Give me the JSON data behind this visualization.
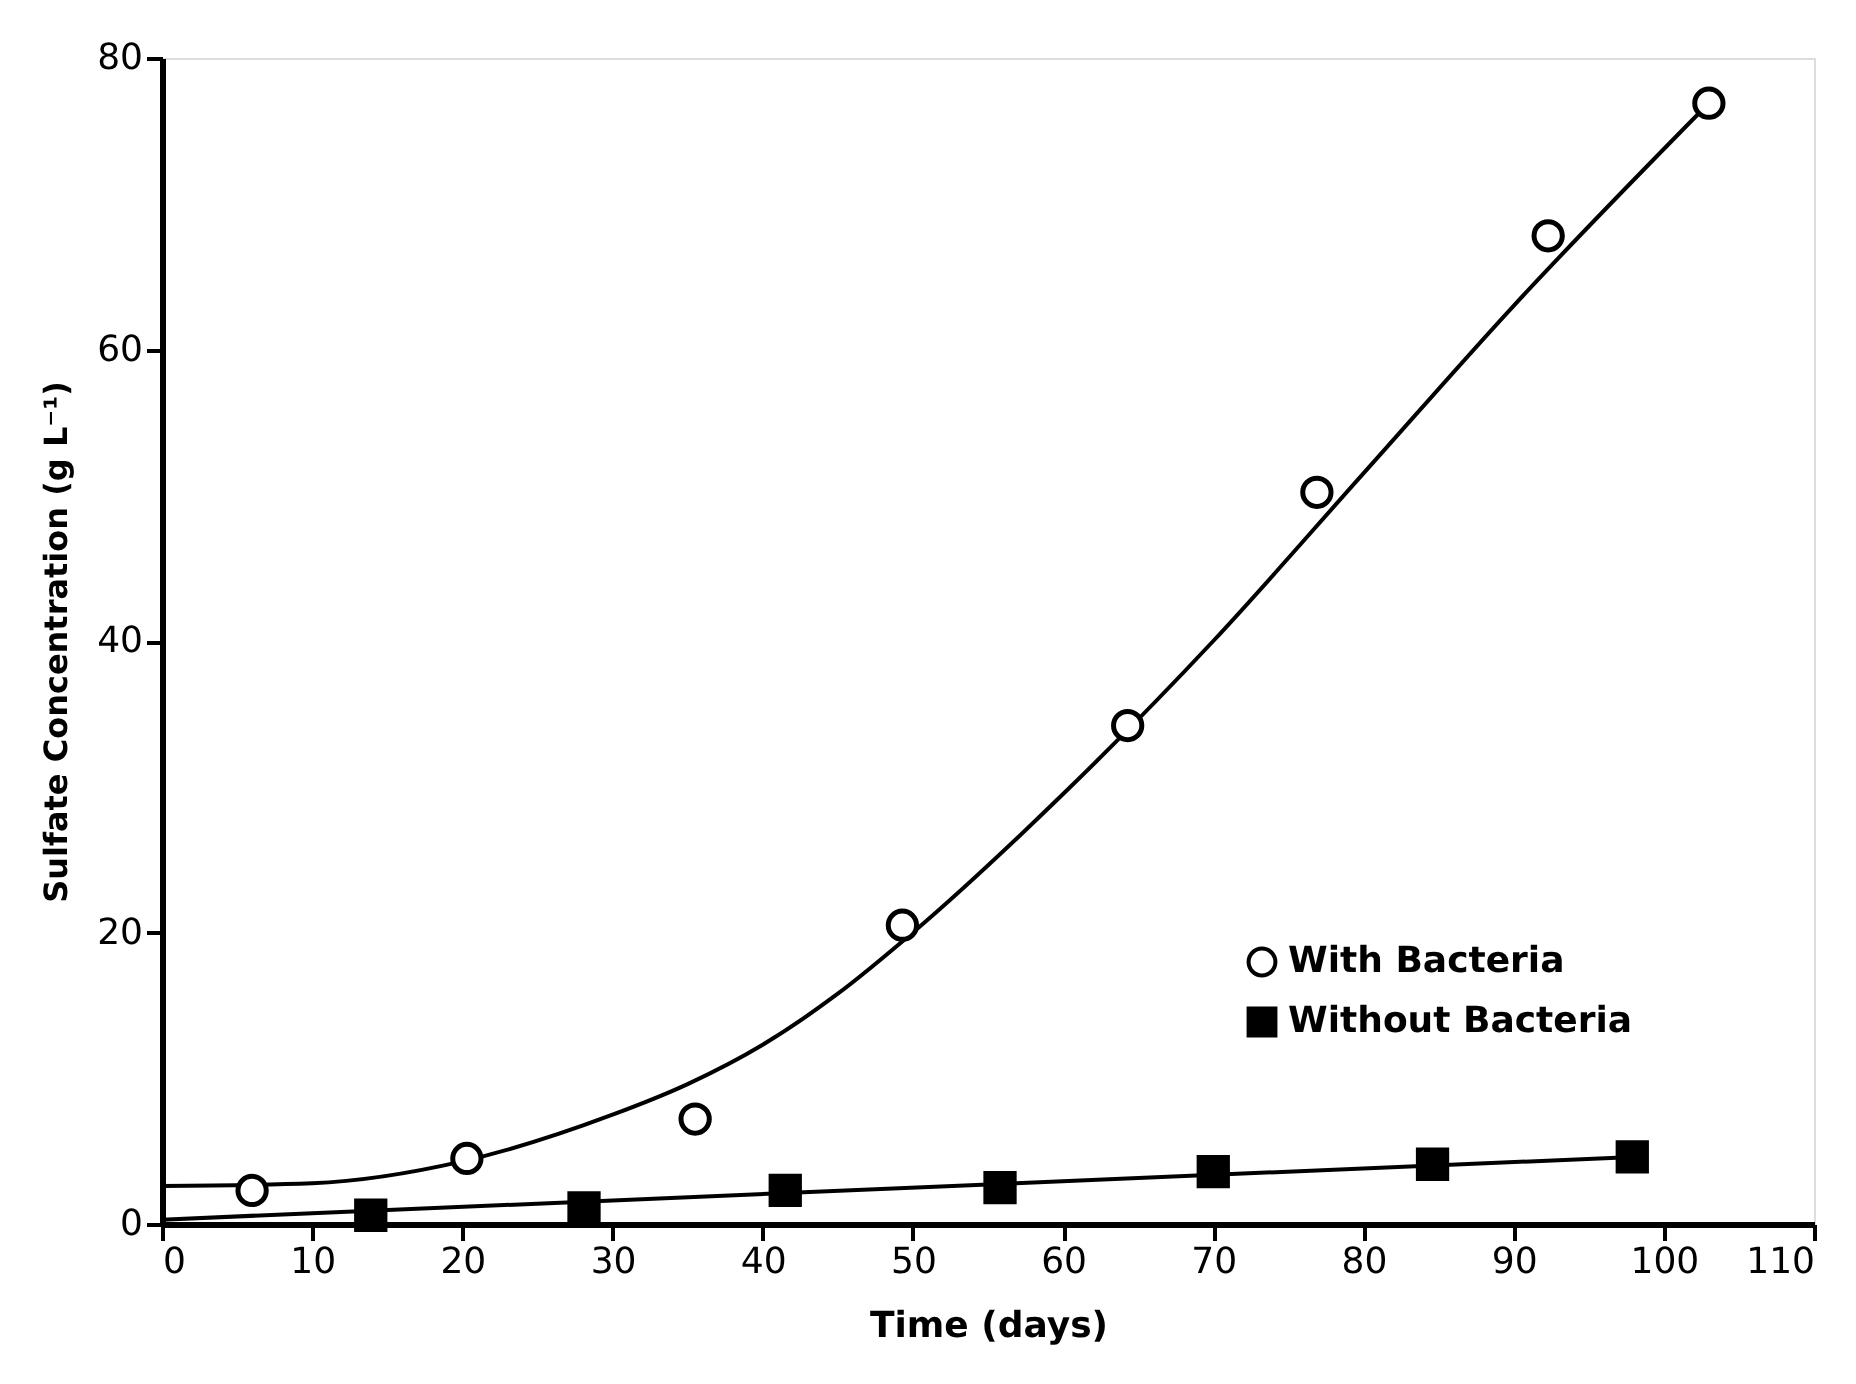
{
  "chart_data": {
    "type": "scatter",
    "xlabel": "Time (days)",
    "ylabel": "Sulfate Concentration (g L⁻¹)",
    "xlim": [
      0,
      110
    ],
    "xticks": [
      0,
      10,
      20,
      30,
      40,
      50,
      60,
      70,
      80,
      90,
      100,
      110
    ],
    "ylim": [
      0,
      80
    ],
    "yticks": [
      0,
      20,
      40,
      60,
      80
    ],
    "grid": false,
    "legend": "bottom right",
    "series": [
      {
        "name": "With  Bacteria",
        "marker": "circle",
        "color": "#000000",
        "x": [
          6.0,
          20.3,
          35.5,
          49.3,
          64.3,
          76.9,
          92.3,
          103
        ],
        "values": [
          2.3,
          4.5,
          7.2,
          20.5,
          34.2,
          50.2,
          67.8,
          76.9
        ]
      },
      {
        "name": "Without Bacteria",
        "marker": "square",
        "color": "#000000",
        "x": [
          13.9,
          28.1,
          41.5,
          55.8,
          70,
          84.6,
          97.9
        ],
        "values": [
          0.6,
          1.1,
          2.3,
          2.5,
          3.6,
          4.1,
          4.6
        ]
      },
      {
        "type": "line",
        "marker": "none",
        "color": "#000000",
        "x": [
          0,
          10,
          20,
          30,
          35,
          40,
          45,
          50,
          60,
          70,
          80,
          90,
          103
        ],
        "values": [
          2.6,
          2.8,
          4.3,
          7.5,
          9.6,
          12.3,
          15.8,
          20.0,
          29.5,
          40,
          51.5,
          63,
          76.9
        ]
      },
      {
        "type": "line",
        "marker": "none",
        "color": "#000000",
        "x": [
          0,
          98
        ],
        "values": [
          0.3,
          4.6
        ]
      }
    ]
  }
}
